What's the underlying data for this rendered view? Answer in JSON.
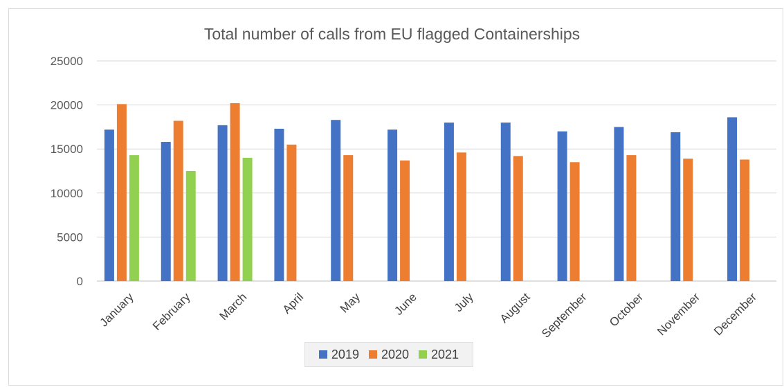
{
  "chart_data": {
    "type": "bar",
    "title": "Total number of calls from EU flagged Containerships",
    "xlabel": "",
    "ylabel": "",
    "ylim": [
      0,
      25000
    ],
    "yticks": [
      "0",
      "5000",
      "10000",
      "15000",
      "20000",
      "25000"
    ],
    "grid": true,
    "legend_position": "bottom",
    "categories": [
      "January",
      "February",
      "March",
      "April",
      "May",
      "June",
      "July",
      "August",
      "September",
      "October",
      "November",
      "December"
    ],
    "series": [
      {
        "name": "2019",
        "color": "#4472C4",
        "values": [
          17200,
          15800,
          17700,
          17300,
          18300,
          17200,
          18000,
          18000,
          17000,
          17500,
          16900,
          18600
        ]
      },
      {
        "name": "2020",
        "color": "#ED7D31",
        "values": [
          20100,
          18200,
          20200,
          15500,
          14300,
          13700,
          14600,
          14200,
          13500,
          14300,
          13900,
          13800
        ]
      },
      {
        "name": "2021",
        "color": "#92D050",
        "values": [
          14300,
          12500,
          14000,
          null,
          null,
          null,
          null,
          null,
          null,
          null,
          null,
          null
        ]
      }
    ]
  }
}
